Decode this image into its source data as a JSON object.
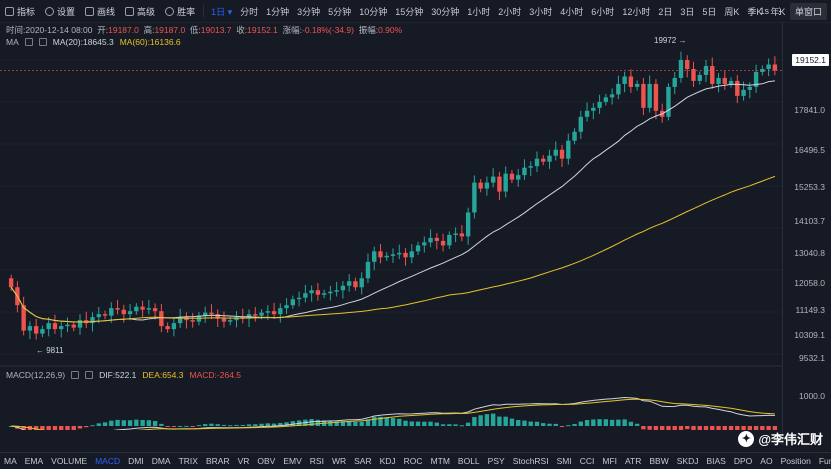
{
  "toolbar": {
    "items": [
      {
        "label": "指标",
        "icon": "indicator-icon"
      },
      {
        "label": "设置",
        "icon": "gear-icon"
      },
      {
        "label": "画线",
        "icon": "pencil-icon"
      },
      {
        "label": "高级",
        "icon": "calendar-icon"
      },
      {
        "label": "胜率",
        "icon": "clock-icon"
      }
    ],
    "interval_selected": "1日",
    "intervals": [
      "分时",
      "1分钟",
      "3分钟",
      "5分钟",
      "10分钟",
      "15分钟",
      "30分钟",
      "1小时",
      "2小时",
      "3小时",
      "4小时",
      "6小时",
      "12小时",
      "2日",
      "3日",
      "5日",
      "周K",
      "季K",
      "年K"
    ],
    "right_interval": "1s",
    "window_button": "单窗口"
  },
  "info": {
    "time_label": "时间:",
    "time": "2020-12-14 08:00",
    "open_label": "开:",
    "open": "19187.0",
    "high_label": "高:",
    "high": "19187.0",
    "low_label": "低:",
    "low": "19013.7",
    "close_label": "收:",
    "close": "19152.1",
    "change_label": "涨幅:",
    "change": "-0.18%(-34.9)",
    "amp_label": "振幅:",
    "amp": "0.90%"
  },
  "ma_legend": {
    "name": "MA",
    "ma20": "MA(20):18645.3",
    "ma60": "MA(60):16136.6"
  },
  "macd_legend": {
    "name": "MACD(12,26,9)",
    "dif": "DIF:522.1",
    "dea": "DEA:654.3",
    "macd": "MACD:-264.5"
  },
  "price_axis": [
    "19152.1",
    "17841.0",
    "16496.5",
    "15253.3",
    "14103.7",
    "13040.8",
    "12058.0",
    "11149.3",
    "10309.1",
    "9532.1"
  ],
  "macd_axis": [
    "1000.0"
  ],
  "current_price": "19152.1",
  "annotations": {
    "high": "19972",
    "low": "9811"
  },
  "bottom_tabs": [
    "MA",
    "EMA",
    "VOLUME",
    "MACD",
    "DMI",
    "DMA",
    "TRIX",
    "BRAR",
    "VR",
    "OBV",
    "EMV",
    "RSI",
    "WR",
    "SAR",
    "KDJ",
    "ROC",
    "MTM",
    "BOLL",
    "PSY",
    "StochRSI",
    "SMI",
    "CCI",
    "MFI",
    "ATR",
    "BBW",
    "SKDJ",
    "BIAS",
    "DPO",
    "AO",
    "Position",
    "Fundflow"
  ],
  "bottom_active": "MACD",
  "watermark": "@李伟汇财",
  "colors": {
    "up": "#26a69a",
    "down": "#ef5350",
    "ma20": "#d1d4dc",
    "ma60": "#e6c229",
    "bg": "#161a25"
  },
  "chart_data": {
    "type": "candlestick",
    "close_series": [
      11900,
      11300,
      10450,
      10600,
      10350,
      10500,
      10700,
      10500,
      10600,
      10650,
      10550,
      10800,
      10700,
      10900,
      11000,
      10950,
      11200,
      11150,
      11000,
      11100,
      11250,
      11150,
      11200,
      11100,
      10600,
      10500,
      10700,
      10900,
      10800,
      10750,
      10950,
      11050,
      11000,
      10850,
      10750,
      10800,
      10900,
      10850,
      11000,
      10950,
      11050,
      11100,
      11000,
      11200,
      11300,
      11500,
      11550,
      11700,
      11800,
      11650,
      11700,
      11750,
      11800,
      11950,
      12100,
      11900,
      12200,
      12750,
      13100,
      12900,
      12950,
      13000,
      13050,
      12900,
      13100,
      13300,
      13400,
      13550,
      13450,
      13300,
      13650,
      13700,
      13600,
      14400,
      15400,
      15200,
      15400,
      15600,
      15100,
      15700,
      15500,
      15650,
      15900,
      15950,
      16200,
      16100,
      16300,
      16500,
      16200,
      16800,
      17100,
      17600,
      17800,
      17900,
      18100,
      18250,
      18350,
      18700,
      18950,
      18600,
      18700,
      17900,
      18700,
      17800,
      17600,
      18600,
      18900,
      19500,
      19200,
      18800,
      19000,
      19300,
      18700,
      18900,
      18700,
      18800,
      18300,
      18500,
      18600,
      19100,
      19200,
      19350,
      19152
    ],
    "ma20": "overlay line",
    "ma60": "overlay line",
    "price_range": [
      9532.1,
      19972
    ]
  }
}
